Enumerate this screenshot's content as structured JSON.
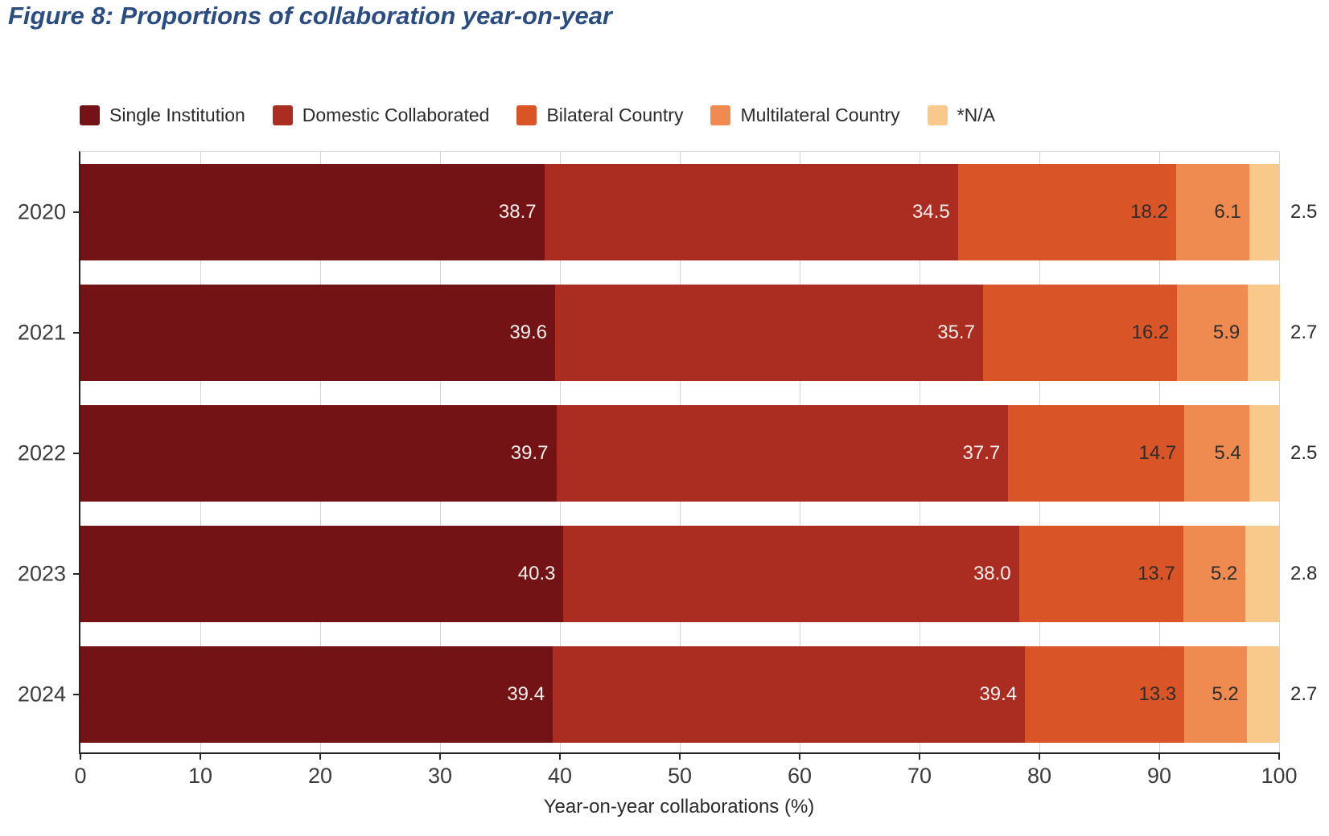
{
  "figure_title": "Figure 8: Proportions of collaboration year-on-year",
  "colors": {
    "title_blue": "#2b4c80",
    "axis_line": "#262626",
    "grid_line": "#d4d4d4",
    "tick_text": "#3c3c3c",
    "label_light": "#f6efed",
    "label_dark": "#2d2d2d"
  },
  "chart_data": {
    "type": "bar",
    "orientation": "horizontal",
    "stacked": true,
    "grid": true,
    "legend_position": "top",
    "categories": [
      "2020",
      "2021",
      "2022",
      "2023",
      "2024"
    ],
    "series": [
      {
        "name": "Single Institution",
        "color": "#731315",
        "label_color": "#f6efed",
        "label_placement": "inside",
        "values": [
          38.7,
          39.6,
          39.7,
          40.3,
          39.4
        ]
      },
      {
        "name": "Domestic Collaborated",
        "color": "#ab2d22",
        "label_color": "#f6efed",
        "label_placement": "inside",
        "values": [
          34.5,
          35.7,
          37.7,
          38.0,
          39.4
        ]
      },
      {
        "name": "Bilateral Country",
        "color": "#d95426",
        "label_color": "#2d2d2d",
        "label_placement": "inside",
        "values": [
          18.2,
          16.2,
          14.7,
          13.7,
          13.3
        ]
      },
      {
        "name": "Multilateral Country",
        "color": "#ef8a51",
        "label_color": "#2d2d2d",
        "label_placement": "inside",
        "values": [
          6.1,
          5.9,
          5.4,
          5.2,
          5.2
        ]
      },
      {
        "name": "*N/A",
        "color": "#f9c98c",
        "label_color": "#2d2d2d",
        "label_placement": "outside",
        "values": [
          2.5,
          2.7,
          2.5,
          2.8,
          2.7
        ]
      }
    ],
    "xlabel": "Year-on-year collaborations (%)",
    "xlim": [
      0,
      100
    ],
    "x_ticks": [
      0,
      10,
      20,
      30,
      40,
      50,
      60,
      70,
      80,
      90,
      100
    ],
    "value_decimals": 1
  }
}
